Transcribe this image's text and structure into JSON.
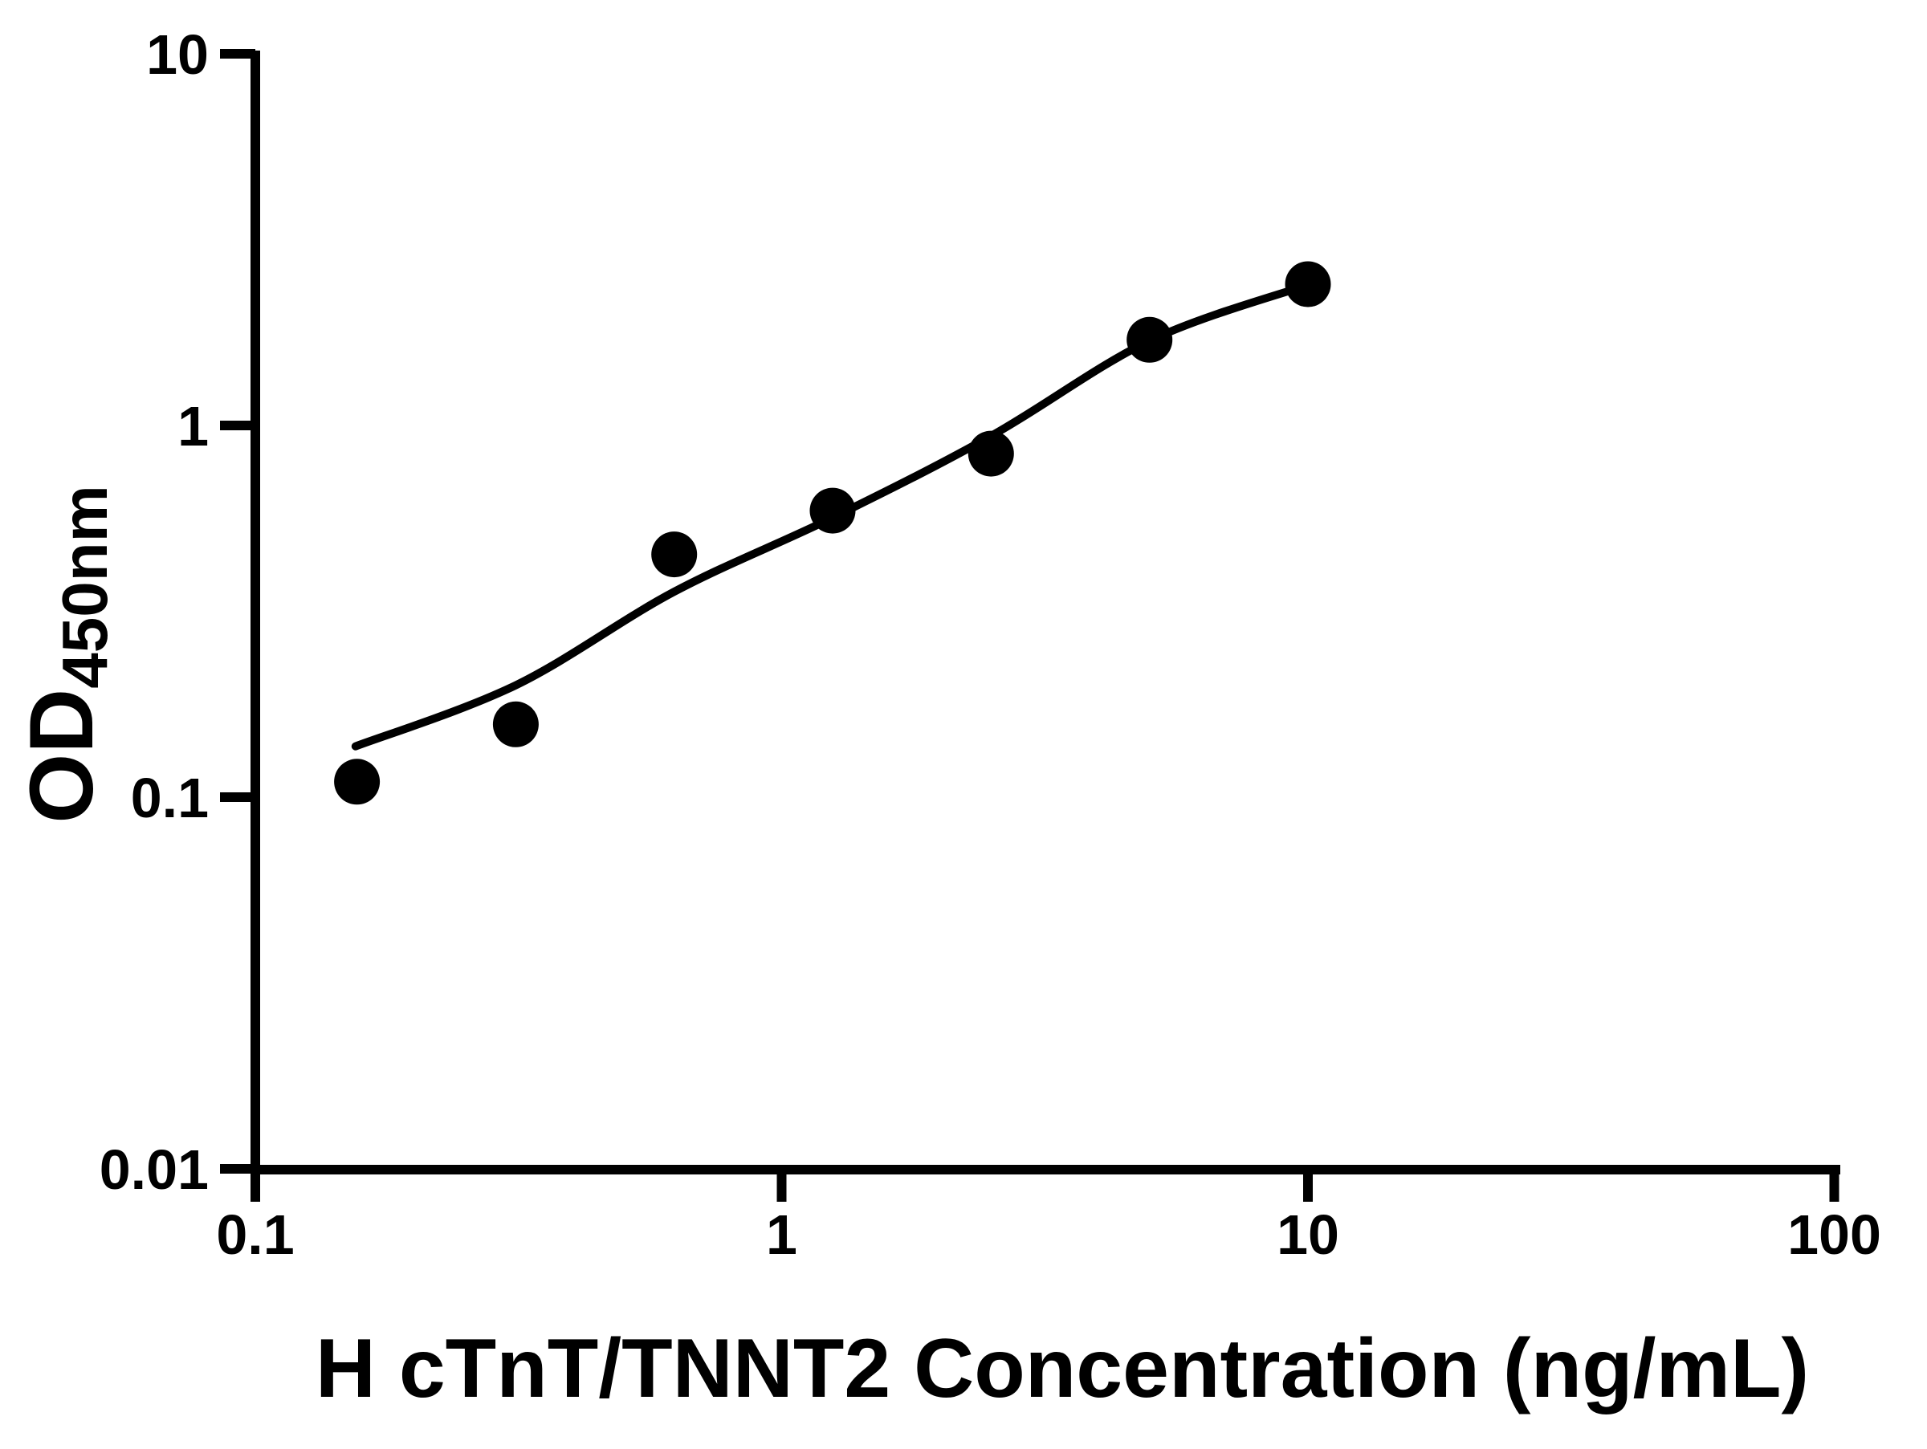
{
  "figure": {
    "background": "#ffffff",
    "ink": "#000000"
  },
  "chart_data": {
    "type": "scatter",
    "title": "",
    "xlabel": "H cTnT/TNNT2 Concentration (ng/mL)",
    "ylabel": "OD450nm",
    "ylabel_main": "OD",
    "ylabel_sub": "450nm",
    "xscale": "log",
    "yscale": "log",
    "xlim": [
      0.1,
      100
    ],
    "ylim": [
      0.01,
      10
    ],
    "grid": false,
    "legend": null,
    "x_tick_values": [
      0.1,
      1,
      10,
      100
    ],
    "x_tick_labels": [
      "0.1",
      "1",
      "10",
      "100"
    ],
    "y_tick_values": [
      0.01,
      0.1,
      1,
      10
    ],
    "y_tick_labels": [
      "0.01",
      "0.1",
      "1",
      "10"
    ],
    "series": [
      {
        "name": "standard-points",
        "kind": "scatter",
        "marker": "filled-circle",
        "color": "#000000",
        "points": [
          {
            "x": 0.156,
            "y": 0.11
          },
          {
            "x": 0.3125,
            "y": 0.157
          },
          {
            "x": 0.625,
            "y": 0.45
          },
          {
            "x": 1.25,
            "y": 0.59
          },
          {
            "x": 2.5,
            "y": 0.84
          },
          {
            "x": 5,
            "y": 1.7
          },
          {
            "x": 10,
            "y": 2.4
          }
        ]
      },
      {
        "name": "fitted-curve",
        "kind": "line",
        "color": "#000000",
        "points": [
          {
            "x": 0.155,
            "y": 0.137
          },
          {
            "x": 0.3125,
            "y": 0.2
          },
          {
            "x": 0.625,
            "y": 0.357
          },
          {
            "x": 1.25,
            "y": 0.565
          },
          {
            "x": 2.5,
            "y": 0.937
          },
          {
            "x": 5,
            "y": 1.69
          },
          {
            "x": 10,
            "y": 2.39
          }
        ]
      }
    ]
  }
}
